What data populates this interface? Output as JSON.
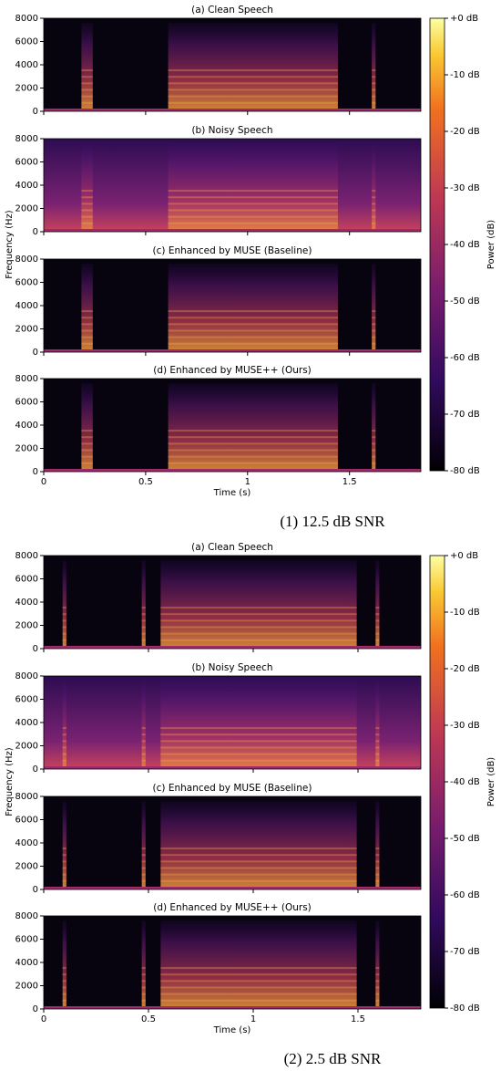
{
  "figures": [
    {
      "caption": "(1) 12.5 dB SNR",
      "ylabel": "Frequency (Hz)",
      "xlabel": "Time (s)",
      "colorbar": {
        "label": "Power (dB)",
        "lim": [
          -80,
          0
        ],
        "ticks": [
          {
            "value": 0,
            "label": "+0 dB"
          },
          {
            "value": -10,
            "label": "-10 dB"
          },
          {
            "value": -20,
            "label": "-20 dB"
          },
          {
            "value": -30,
            "label": "-30 dB"
          },
          {
            "value": -40,
            "label": "-40 dB"
          },
          {
            "value": -50,
            "label": "-50 dB"
          },
          {
            "value": -60,
            "label": "-60 dB"
          },
          {
            "value": -70,
            "label": "-70 dB"
          },
          {
            "value": -80,
            "label": "-80 dB"
          }
        ]
      },
      "panels": [
        {
          "type": "spectrogram",
          "title": "(a) Clean Speech",
          "xlim": [
            0,
            1.85
          ],
          "xticks": [
            0,
            0.5,
            1,
            1.5
          ],
          "ylim": [
            0,
            8000
          ],
          "yticks": [
            0,
            2000,
            4000,
            6000,
            8000
          ]
        },
        {
          "type": "spectrogram",
          "title": "(b) Noisy Speech",
          "xlim": [
            0,
            1.85
          ],
          "xticks": [
            0,
            0.5,
            1,
            1.5
          ],
          "ylim": [
            0,
            8000
          ],
          "yticks": [
            0,
            2000,
            4000,
            6000,
            8000
          ]
        },
        {
          "type": "spectrogram",
          "title": "(c) Enhanced by MUSE (Baseline)",
          "xlim": [
            0,
            1.85
          ],
          "xticks": [
            0,
            0.5,
            1,
            1.5
          ],
          "ylim": [
            0,
            8000
          ],
          "yticks": [
            0,
            2000,
            4000,
            6000,
            8000
          ]
        },
        {
          "type": "spectrogram",
          "title": "(d) Enhanced by MUSE++ (Ours)",
          "xlim": [
            0,
            1.85
          ],
          "xticks": [
            0,
            0.5,
            1,
            1.5
          ],
          "ylim": [
            0,
            8000
          ],
          "yticks": [
            0,
            2000,
            4000,
            6000,
            8000
          ]
        }
      ]
    },
    {
      "caption": "(2) 2.5 dB SNR",
      "ylabel": "Frequency (Hz)",
      "xlabel": "Time (s)",
      "colorbar": {
        "label": "Power (dB)",
        "lim": [
          -80,
          0
        ],
        "ticks": [
          {
            "value": 0,
            "label": "+0 dB"
          },
          {
            "value": -10,
            "label": "-10 dB"
          },
          {
            "value": -20,
            "label": "-20 dB"
          },
          {
            "value": -30,
            "label": "-30 dB"
          },
          {
            "value": -40,
            "label": "-40 dB"
          },
          {
            "value": -50,
            "label": "-50 dB"
          },
          {
            "value": -60,
            "label": "-60 dB"
          },
          {
            "value": -70,
            "label": "-70 dB"
          },
          {
            "value": -80,
            "label": "-80 dB"
          }
        ]
      },
      "panels": [
        {
          "type": "spectrogram",
          "title": "(a) Clean Speech",
          "xlim": [
            0,
            1.8
          ],
          "xticks": [
            0,
            0.5,
            1,
            1.5
          ],
          "ylim": [
            0,
            8000
          ],
          "yticks": [
            0,
            2000,
            4000,
            6000,
            8000
          ]
        },
        {
          "type": "spectrogram",
          "title": "(b) Noisy Speech",
          "xlim": [
            0,
            1.8
          ],
          "xticks": [
            0,
            0.5,
            1,
            1.5
          ],
          "ylim": [
            0,
            8000
          ],
          "yticks": [
            0,
            2000,
            4000,
            6000,
            8000
          ]
        },
        {
          "type": "spectrogram",
          "title": "(c) Enhanced by MUSE (Baseline)",
          "xlim": [
            0,
            1.8
          ],
          "xticks": [
            0,
            0.5,
            1,
            1.5
          ],
          "ylim": [
            0,
            8000
          ],
          "yticks": [
            0,
            2000,
            4000,
            6000,
            8000
          ]
        },
        {
          "type": "spectrogram",
          "title": "(d) Enhanced by MUSE++ (Ours)",
          "xlim": [
            0,
            1.8
          ],
          "xticks": [
            0,
            0.5,
            1,
            1.5
          ],
          "ylim": [
            0,
            8000
          ],
          "yticks": [
            0,
            2000,
            4000,
            6000,
            8000
          ]
        }
      ]
    }
  ]
}
